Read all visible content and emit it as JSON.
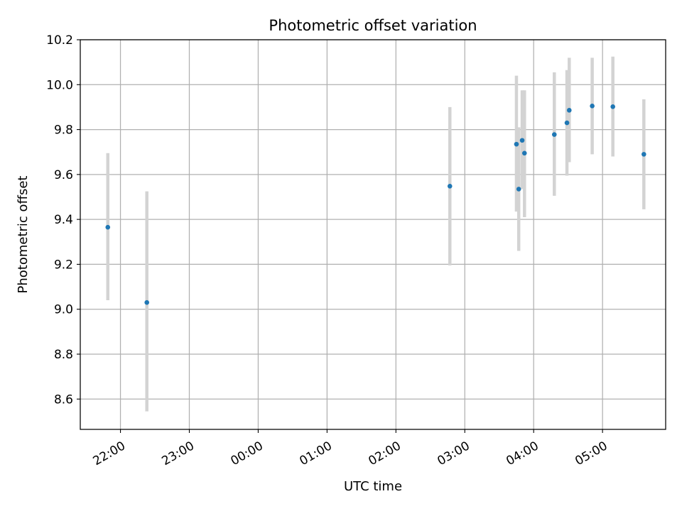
{
  "chart_data": {
    "type": "scatter",
    "title": "Photometric offset variation",
    "xlabel": "UTC time",
    "ylabel": "Photometric offset",
    "x_axis": {
      "kind": "time",
      "range": [
        "21:25",
        "05:55"
      ],
      "ticks": [
        "22:00",
        "23:00",
        "00:00",
        "01:00",
        "02:00",
        "03:00",
        "04:00",
        "05:00"
      ]
    },
    "y_axis": {
      "range": [
        8.465,
        10.2
      ],
      "ticks": [
        8.6,
        8.8,
        9.0,
        9.2,
        9.4,
        9.6,
        9.8,
        10.0,
        10.2
      ],
      "tick_labels": [
        "8.6",
        "8.8",
        "9.0",
        "9.2",
        "9.4",
        "9.6",
        "9.8",
        "10.0",
        "10.2"
      ]
    },
    "grid": true,
    "colors": {
      "point": "#1f77b4",
      "errorbar": "#d3d3d3",
      "grid": "#b0b0b0"
    },
    "points": [
      {
        "x": "21:49",
        "y": 9.365,
        "ylow": 9.04,
        "yhigh": 9.695
      },
      {
        "x": "22:23",
        "y": 9.03,
        "ylow": 8.545,
        "yhigh": 9.525
      },
      {
        "x": "02:47",
        "y": 9.548,
        "ylow": 9.195,
        "yhigh": 9.9
      },
      {
        "x": "03:45",
        "y": 9.735,
        "ylow": 9.435,
        "yhigh": 10.04
      },
      {
        "x": "03:47",
        "y": 9.535,
        "ylow": 9.26,
        "yhigh": 9.81
      },
      {
        "x": "03:50",
        "y": 9.752,
        "ylow": 9.535,
        "yhigh": 9.975
      },
      {
        "x": "03:52",
        "y": 9.695,
        "ylow": 9.41,
        "yhigh": 9.975
      },
      {
        "x": "04:18",
        "y": 9.778,
        "ylow": 9.505,
        "yhigh": 10.055
      },
      {
        "x": "04:29",
        "y": 9.83,
        "ylow": 9.595,
        "yhigh": 10.065
      },
      {
        "x": "04:31",
        "y": 9.886,
        "ylow": 9.655,
        "yhigh": 10.12
      },
      {
        "x": "04:51",
        "y": 9.905,
        "ylow": 9.69,
        "yhigh": 10.12
      },
      {
        "x": "05:09",
        "y": 9.902,
        "ylow": 9.68,
        "yhigh": 10.125
      },
      {
        "x": "05:36",
        "y": 9.69,
        "ylow": 9.445,
        "yhigh": 9.935
      }
    ]
  }
}
